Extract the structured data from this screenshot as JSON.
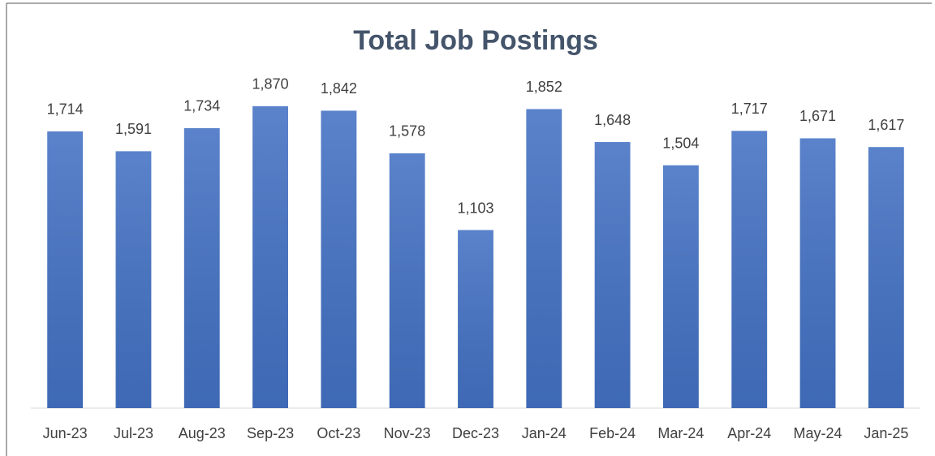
{
  "chart_data": {
    "type": "bar",
    "title": "Total Job Postings",
    "categories": [
      "Jun-23",
      "Jul-23",
      "Aug-23",
      "Sep-23",
      "Oct-23",
      "Nov-23",
      "Dec-23",
      "Jan-24",
      "Feb-24",
      "Mar-24",
      "Apr-24",
      "May-24",
      "Jan-25"
    ],
    "values": [
      1714,
      1591,
      1734,
      1870,
      1842,
      1578,
      1103,
      1852,
      1648,
      1504,
      1717,
      1671,
      1617
    ],
    "value_labels": [
      "1,714",
      "1,591",
      "1,734",
      "1,870",
      "1,842",
      "1,578",
      "1,103",
      "1,852",
      "1,648",
      "1,504",
      "1,717",
      "1,671",
      "1,617"
    ],
    "color": "#4472c4",
    "ylim": [
      0,
      2000
    ]
  }
}
